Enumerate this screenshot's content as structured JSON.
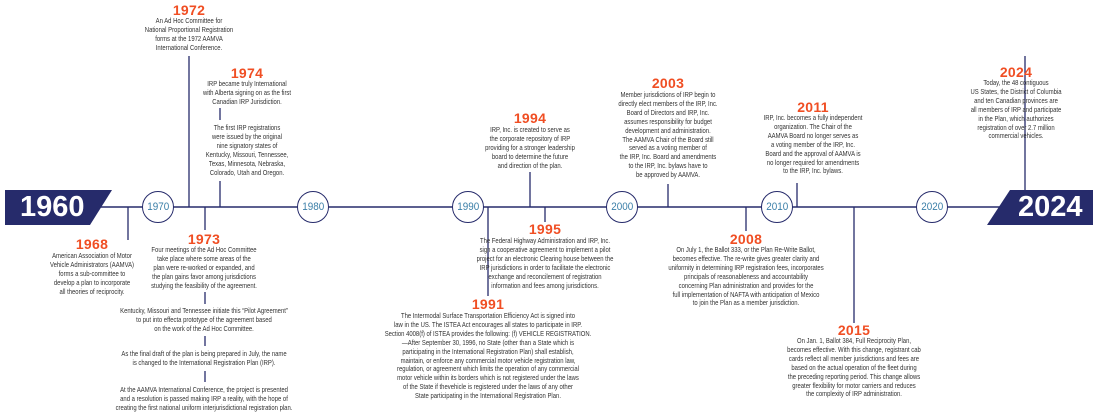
{
  "colors": {
    "navy": "#262b6b",
    "orange": "#f04e23",
    "decade": "#3b7fa8"
  },
  "start_year": "1960",
  "end_year": "2024",
  "decades": [
    "1970",
    "1980",
    "1990",
    "2000",
    "2010",
    "2020"
  ],
  "events": [
    {
      "year": "1968",
      "text": "American Association of Motor\nVehicle Administrators (AAMVA)\nforms a sub-committee to\ndevelop a plan to incorporate\nall theories of reciprocity."
    },
    {
      "year": "1972",
      "text": "An Ad Hoc Committee for\nNational Proportional Registration\nforms at the 1972 AAMVA\nInternational Conference."
    },
    {
      "year": "1973",
      "texts": [
        "Four meetings of the Ad Hoc Committee\ntake place where some areas of the\nplan were re-worked or expanded, and\nthe plan gains favor among jurisdictions\nstudying the feasibility of the agreement.",
        "Kentucky, Missouri and Tennessee initiate this “Pilot Agreement”\nto put into effecta prototype of the agreement based\non the work of the Ad Hoc Committee.",
        "As the final draft of the plan is being prepared in July, the name\nis changed to the International Registration Plan (IRP).",
        "At the AAMVA International Conference, the project is presented\nand a resolution is passed making IRP a reality, with the hope of\ncreating the first national uniform interjurisdictional registration plan."
      ]
    },
    {
      "year": "1974",
      "texts": [
        "IRP became truly International\nwith Alberta signing on as the first\nCanadian IRP Jurisdiction.",
        "The first IRP registrations\nwere issued by the original\nnine signatory states of\nKentucky, Missouri, Tennessee,\nTexas, Minnesota, Nebraska,\nColorado, Utah and Oregon."
      ]
    },
    {
      "year": "1991",
      "text": "The Intermodal Surface Transportation Efficiency Act is signed into\nlaw in the US. The ISTEA Act encourages all states to participate in IRP.\nSection 4008(f) of ISTEA provides the following: (f) VEHICLE REGISTRATION.\n—After September 30, 1996, no State (other than a State which is\nparticipating in the International Registration Plan) shall establish,\nmaintain, or enforce any commercial motor vehicle registration law,\nregulation, or agreement which limits the operation of any commercial\nmotor vehicle within its borders which is not registered under the laws\nof the State if thevehicle is registered under the laws of any other\nState participating in the International Registration Plan."
    },
    {
      "year": "1994",
      "text": "IRP, Inc. is created to serve as\nthe corporate repository of IRP\nproviding for a stronger leadership\nboard to determine the future\nand direction of the plan."
    },
    {
      "year": "1995",
      "text": "The Federal Highway Administration and IRP, Inc.\nsign a cooperative agreement to implement a pilot\nproject for an electronic Clearing house between the\nIRP jurisdictions in order to facilitate the electronic\nexchange and reconcilement of registration\ninformation and fees among jurisdictions."
    },
    {
      "year": "2003",
      "text": "Member jurisdictions of IRP begin to\ndirectly elect members of the IRP, Inc.\nBoard of Directors and IRP, Inc.\nassumes responsibility for budget\ndevelopment and administration.\nThe AAMVA Chair of the Board still\nserved as a voting member of\nthe IRP, Inc. Board and amendments\nto the IRP, Inc. bylaws have to\nbe approved by AAMVA."
    },
    {
      "year": "2008",
      "text": "On July 1, the Ballot 333, or the Plan Re-Write Ballot,\nbecomes effective. The re-write gives greater clarity and\nuniformity in determining IRP registration fees, incorporates\nprincipals of reasonableness and accountability\nconcerning Plan administration and provides for the\nfull implementation of NAFTA with anticipation of Mexico\nto join the Plan as a member jurisdiction."
    },
    {
      "year": "2011",
      "text": "IRP, Inc. becomes a fully independent\norganization. The Chair of the\nAAMVA Board no longer serves as\na voting member of the IRP, Inc.\nBoard and the approval of AAMVA is\nno longer required for amendments\nto the IRP, Inc. bylaws."
    },
    {
      "year": "2015",
      "text": "On Jan. 1, Ballot 384, Full Reciprocity Plan,\nbecomes effective. With this change, registrant cab\ncards reflect all member jurisdictions and fees are\nbased on the actual operation of the fleet during\nthe preceding reporting period. This change allows\ngreater flexibility for motor carriers and reduces\nthe complexity of IRP administration."
    },
    {
      "year": "2024",
      "text": "Today, the 48 contiguous\nUS States, the District of Columbia\nand ten Canadian provinces are\nall members of IRP and participate\nin the Plan, which authorizes\nregistration of over 2.7 million\ncommercial vehicles."
    }
  ]
}
